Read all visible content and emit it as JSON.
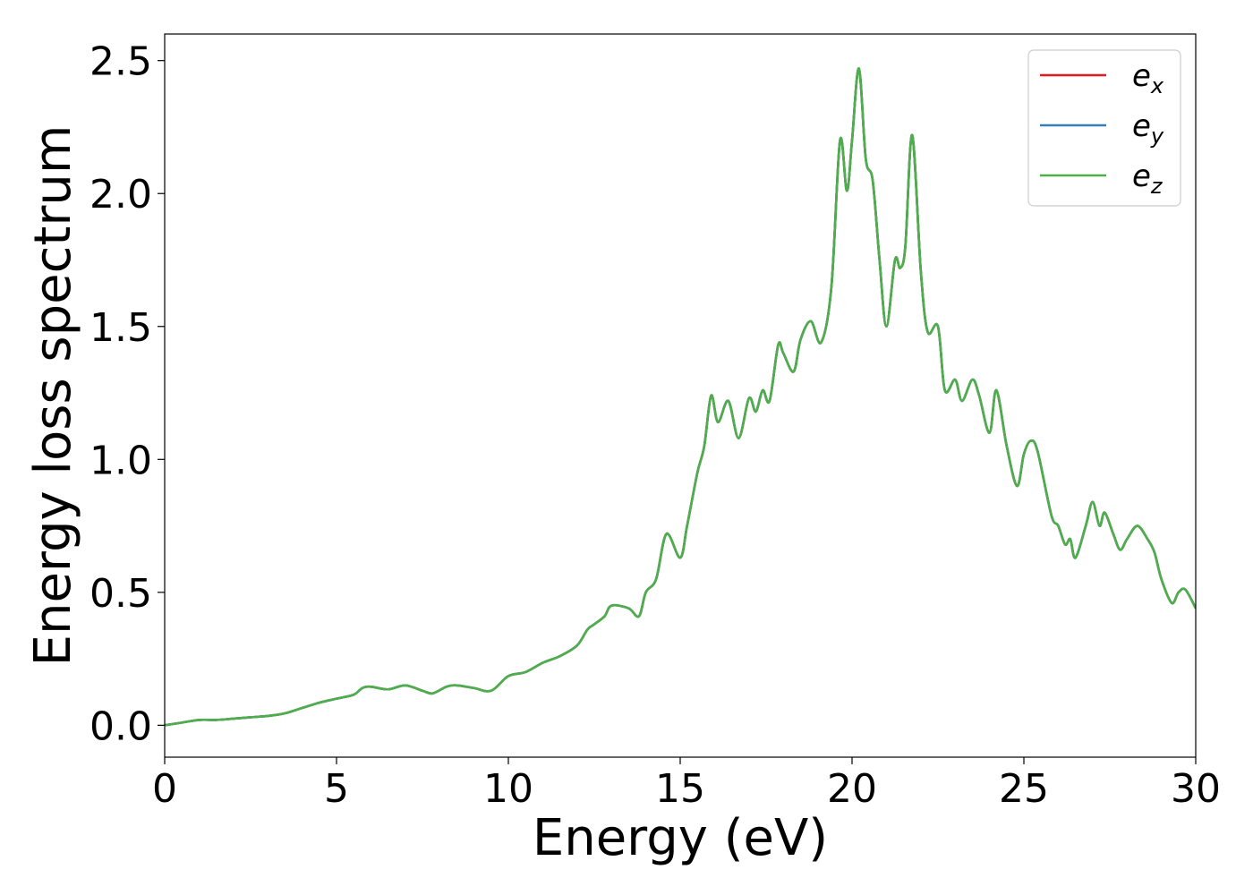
{
  "chart_data": {
    "type": "line",
    "title": "",
    "xlabel": "Energy (eV)",
    "ylabel": "Energy loss spectrum",
    "xlim": [
      0,
      30
    ],
    "ylim": [
      -0.12,
      2.6
    ],
    "xticks": [
      0,
      5,
      10,
      15,
      20,
      25,
      30
    ],
    "xtick_labels": [
      "0",
      "5",
      "10",
      "15",
      "20",
      "25",
      "30"
    ],
    "yticks": [
      0.0,
      0.5,
      1.0,
      1.5,
      2.0,
      2.5
    ],
    "ytick_labels": [
      "0.0",
      "0.5",
      "1.0",
      "1.5",
      "2.0",
      "2.5"
    ],
    "grid": false,
    "legend_position": "top-right",
    "x": [
      0,
      0.5,
      1.0,
      1.5,
      2.0,
      2.5,
      3.0,
      3.5,
      4.0,
      4.5,
      5.0,
      5.5,
      5.75,
      6.0,
      6.5,
      7.0,
      7.5,
      7.8,
      8.2,
      8.5,
      9.0,
      9.5,
      10.0,
      10.5,
      11.0,
      11.5,
      12.0,
      12.3,
      12.5,
      12.8,
      13.0,
      13.5,
      13.8,
      14.0,
      14.3,
      14.6,
      15.0,
      15.2,
      15.5,
      15.7,
      15.9,
      16.1,
      16.4,
      16.7,
      17.0,
      17.2,
      17.4,
      17.6,
      17.85,
      18.0,
      18.3,
      18.5,
      18.8,
      19.1,
      19.4,
      19.65,
      19.85,
      20.0,
      20.2,
      20.4,
      20.6,
      20.8,
      21.0,
      21.25,
      21.4,
      21.55,
      21.75,
      22.0,
      22.2,
      22.5,
      22.7,
      23.0,
      23.2,
      23.5,
      23.7,
      24.0,
      24.2,
      24.5,
      24.8,
      25.0,
      25.2,
      25.4,
      25.8,
      26.0,
      26.2,
      26.35,
      26.5,
      26.8,
      27.0,
      27.2,
      27.35,
      27.6,
      27.8,
      28.0,
      28.3,
      28.6,
      28.8,
      29.0,
      29.3,
      29.5,
      29.7,
      30.0
    ],
    "series": [
      {
        "name": "x",
        "color": "#e41a1c",
        "values": [
          0.0,
          0.01,
          0.02,
          0.02,
          0.025,
          0.03,
          0.035,
          0.045,
          0.065,
          0.085,
          0.1,
          0.115,
          0.14,
          0.145,
          0.135,
          0.15,
          0.13,
          0.12,
          0.145,
          0.15,
          0.14,
          0.13,
          0.185,
          0.2,
          0.235,
          0.26,
          0.3,
          0.36,
          0.38,
          0.41,
          0.45,
          0.44,
          0.41,
          0.5,
          0.55,
          0.72,
          0.63,
          0.75,
          0.95,
          1.05,
          1.24,
          1.14,
          1.22,
          1.08,
          1.23,
          1.18,
          1.26,
          1.22,
          1.43,
          1.4,
          1.33,
          1.45,
          1.52,
          1.44,
          1.65,
          2.2,
          2.01,
          2.2,
          2.47,
          2.13,
          2.05,
          1.75,
          1.5,
          1.75,
          1.72,
          1.8,
          2.22,
          1.71,
          1.48,
          1.5,
          1.26,
          1.3,
          1.22,
          1.3,
          1.24,
          1.1,
          1.26,
          1.05,
          0.9,
          1.02,
          1.07,
          1.03,
          0.79,
          0.75,
          0.68,
          0.7,
          0.63,
          0.75,
          0.84,
          0.75,
          0.8,
          0.72,
          0.66,
          0.7,
          0.75,
          0.7,
          0.65,
          0.55,
          0.46,
          0.5,
          0.51,
          0.44
        ]
      },
      {
        "name": "y",
        "color": "#377eb8",
        "values": [
          0.0,
          0.01,
          0.02,
          0.02,
          0.025,
          0.03,
          0.035,
          0.045,
          0.065,
          0.085,
          0.1,
          0.115,
          0.14,
          0.145,
          0.135,
          0.15,
          0.13,
          0.12,
          0.145,
          0.15,
          0.14,
          0.13,
          0.185,
          0.2,
          0.235,
          0.26,
          0.3,
          0.36,
          0.38,
          0.41,
          0.45,
          0.44,
          0.41,
          0.5,
          0.55,
          0.72,
          0.63,
          0.75,
          0.95,
          1.05,
          1.24,
          1.14,
          1.22,
          1.08,
          1.23,
          1.18,
          1.26,
          1.22,
          1.43,
          1.4,
          1.33,
          1.45,
          1.52,
          1.44,
          1.65,
          2.2,
          2.01,
          2.2,
          2.47,
          2.13,
          2.05,
          1.75,
          1.5,
          1.75,
          1.72,
          1.8,
          2.22,
          1.71,
          1.48,
          1.5,
          1.26,
          1.3,
          1.22,
          1.3,
          1.24,
          1.1,
          1.26,
          1.05,
          0.9,
          1.02,
          1.07,
          1.03,
          0.79,
          0.75,
          0.68,
          0.7,
          0.63,
          0.75,
          0.84,
          0.75,
          0.8,
          0.72,
          0.66,
          0.7,
          0.75,
          0.7,
          0.65,
          0.55,
          0.46,
          0.5,
          0.51,
          0.44
        ]
      },
      {
        "name": "z",
        "color": "#4daf4a",
        "values": [
          0.0,
          0.01,
          0.02,
          0.02,
          0.025,
          0.03,
          0.035,
          0.045,
          0.065,
          0.085,
          0.1,
          0.115,
          0.14,
          0.145,
          0.135,
          0.15,
          0.13,
          0.12,
          0.145,
          0.15,
          0.14,
          0.13,
          0.185,
          0.2,
          0.235,
          0.26,
          0.3,
          0.36,
          0.38,
          0.41,
          0.45,
          0.44,
          0.41,
          0.5,
          0.55,
          0.72,
          0.63,
          0.75,
          0.95,
          1.05,
          1.24,
          1.14,
          1.22,
          1.08,
          1.23,
          1.18,
          1.26,
          1.22,
          1.43,
          1.4,
          1.33,
          1.45,
          1.52,
          1.44,
          1.65,
          2.2,
          2.01,
          2.2,
          2.47,
          2.13,
          2.05,
          1.75,
          1.5,
          1.75,
          1.72,
          1.8,
          2.22,
          1.71,
          1.48,
          1.5,
          1.26,
          1.3,
          1.22,
          1.3,
          1.24,
          1.1,
          1.26,
          1.05,
          0.9,
          1.02,
          1.07,
          1.03,
          0.79,
          0.75,
          0.68,
          0.7,
          0.63,
          0.75,
          0.84,
          0.75,
          0.8,
          0.72,
          0.66,
          0.7,
          0.75,
          0.7,
          0.65,
          0.55,
          0.46,
          0.5,
          0.51,
          0.44
        ]
      }
    ],
    "legend": [
      {
        "base": "e",
        "sub": "x",
        "color": "#e41a1c"
      },
      {
        "base": "e",
        "sub": "y",
        "color": "#377eb8"
      },
      {
        "base": "e",
        "sub": "z",
        "color": "#4daf4a"
      }
    ]
  }
}
